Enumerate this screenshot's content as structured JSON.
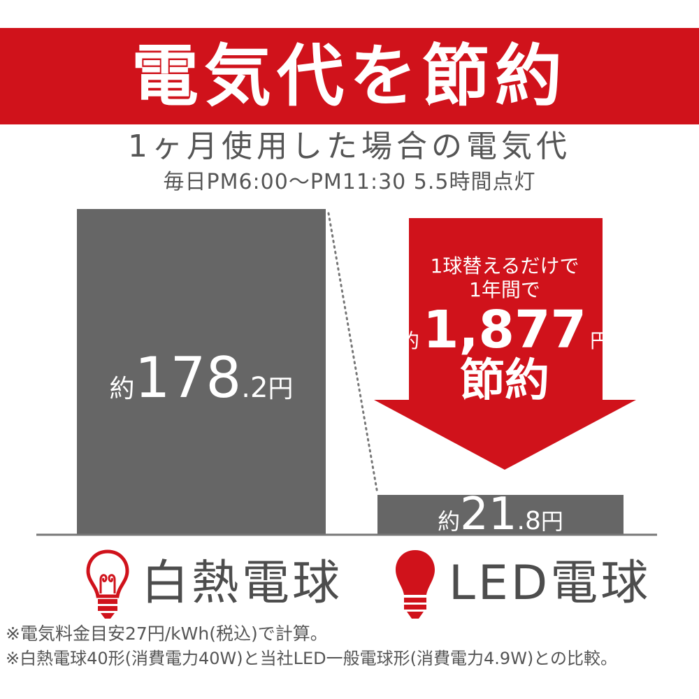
{
  "header": {
    "title": "電気代を節約",
    "subtitle": "1ヶ月使用した場合の電気代",
    "usage_condition": "毎日PM6:00〜PM11:30 5.5時間点灯"
  },
  "arrow_callout": {
    "line1": "1球替えるだけで",
    "line2": "1年間で",
    "prefix": "約",
    "amount": "1,877",
    "unit": "円",
    "line4": "節約"
  },
  "chart_data": {
    "type": "bar",
    "categories": [
      "白熱電球",
      "LED電球"
    ],
    "values": [
      178.2,
      21.8
    ],
    "value_labels": [
      {
        "prefix": "約",
        "integer": "178",
        "decimal": ".2",
        "unit": "円"
      },
      {
        "prefix": "約",
        "integer": "21",
        "decimal": ".8",
        "unit": "円"
      }
    ],
    "ylim": [
      0,
      178.2
    ],
    "grid": false,
    "colors": {
      "bar": "#666666",
      "accent": "#d0121b",
      "incandescent_icon": "#d0121b",
      "led_icon": "#d0121b"
    }
  },
  "icons": {
    "incandescent": "incandescent-bulb-icon",
    "led": "led-bulb-icon"
  },
  "notes": [
    "※電気料金目安27円/kWh(税込)で計算。",
    "※白熱電球40形(消費電力40W)と当社LED一般電球形(消費電力4.9W)との比較。"
  ]
}
